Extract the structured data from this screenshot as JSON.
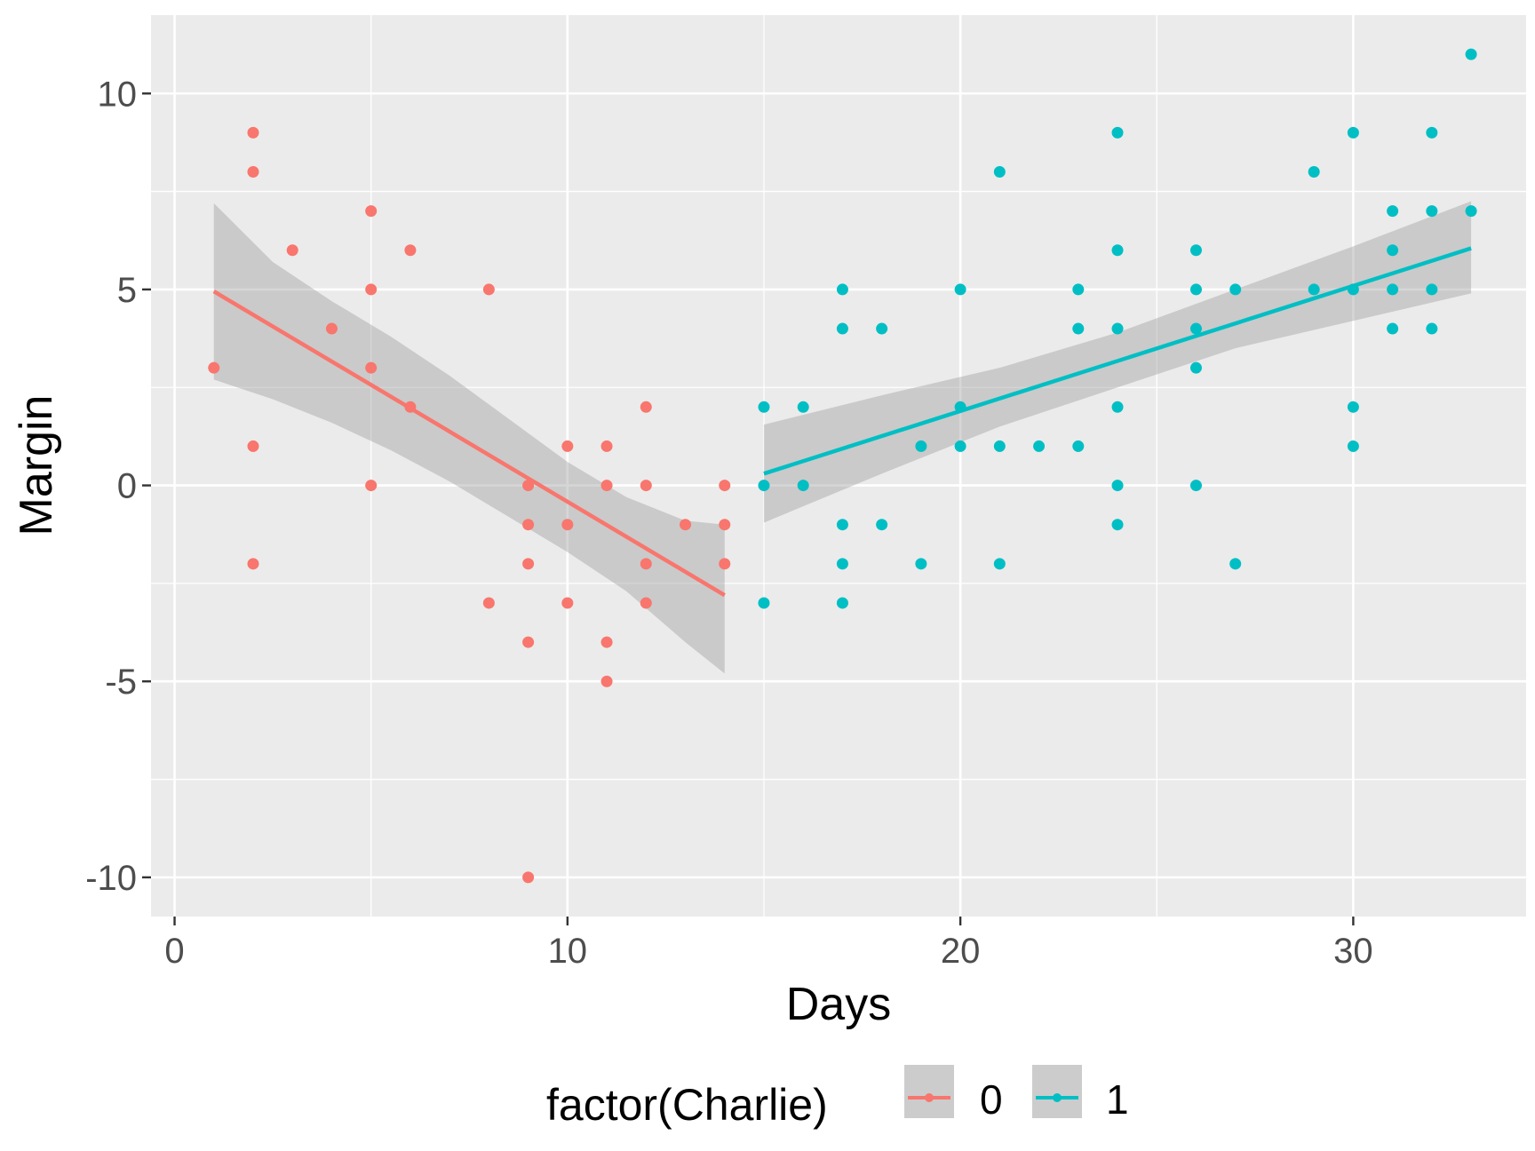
{
  "chart_data": {
    "type": "scatter",
    "title": "",
    "xlabel": "Days",
    "ylabel": "Margin",
    "xlim": [
      -0.6,
      34.4
    ],
    "ylim": [
      -11,
      12
    ],
    "x_ticks": [
      0,
      10,
      20,
      30
    ],
    "x_tick_labels": [
      "0",
      "10",
      "20",
      "30"
    ],
    "y_ticks": [
      -10,
      -5,
      0,
      5,
      10
    ],
    "y_tick_labels": [
      "-10",
      "-5",
      "0",
      "5",
      "10"
    ],
    "grid": true,
    "legend": {
      "title": "factor(Charlie)",
      "position": "bottom",
      "entries": [
        "0",
        "1"
      ]
    },
    "series": [
      {
        "name": "0",
        "color": "#F8766D",
        "points": [
          [
            1,
            3
          ],
          [
            2,
            9
          ],
          [
            2,
            8
          ],
          [
            2,
            1
          ],
          [
            2,
            -2
          ],
          [
            3,
            6
          ],
          [
            4,
            4
          ],
          [
            5,
            7
          ],
          [
            5,
            5
          ],
          [
            5,
            3
          ],
          [
            5,
            0
          ],
          [
            6,
            6
          ],
          [
            6,
            2
          ],
          [
            8,
            5
          ],
          [
            8,
            -3
          ],
          [
            9,
            0
          ],
          [
            9,
            -1
          ],
          [
            9,
            -2
          ],
          [
            9,
            -4
          ],
          [
            9,
            -10
          ],
          [
            10,
            1
          ],
          [
            10,
            -1
          ],
          [
            10,
            -3
          ],
          [
            11,
            1
          ],
          [
            11,
            0
          ],
          [
            11,
            -4
          ],
          [
            11,
            -5
          ],
          [
            12,
            2
          ],
          [
            12,
            0
          ],
          [
            12,
            -2
          ],
          [
            12,
            -3
          ],
          [
            13,
            -1
          ],
          [
            14,
            0
          ],
          [
            14,
            -1
          ],
          [
            14,
            -2
          ]
        ],
        "fit": {
          "x0": 1,
          "y0": 4.95,
          "x1": 14,
          "y1": -2.8
        },
        "band": {
          "x": [
            1,
            2.5,
            4,
            5.5,
            7,
            8.5,
            10,
            11.5,
            13,
            14
          ],
          "upper": [
            7.2,
            5.7,
            4.7,
            3.8,
            2.8,
            1.7,
            0.6,
            -0.3,
            -0.9,
            -1.0
          ],
          "lower": [
            2.7,
            2.2,
            1.6,
            0.9,
            0.1,
            -0.8,
            -1.7,
            -2.7,
            -4.0,
            -4.8
          ]
        }
      },
      {
        "name": "1",
        "color": "#00BFC4",
        "points": [
          [
            15,
            2
          ],
          [
            15,
            0
          ],
          [
            15,
            -3
          ],
          [
            16,
            2
          ],
          [
            16,
            0
          ],
          [
            17,
            5
          ],
          [
            17,
            4
          ],
          [
            17,
            -1
          ],
          [
            17,
            -2
          ],
          [
            17,
            -3
          ],
          [
            18,
            4
          ],
          [
            18,
            -1
          ],
          [
            19,
            1
          ],
          [
            19,
            -2
          ],
          [
            20,
            5
          ],
          [
            20,
            2
          ],
          [
            20,
            1
          ],
          [
            21,
            8
          ],
          [
            21,
            1
          ],
          [
            21,
            -2
          ],
          [
            22,
            1
          ],
          [
            23,
            5
          ],
          [
            23,
            4
          ],
          [
            23,
            1
          ],
          [
            24,
            9
          ],
          [
            24,
            6
          ],
          [
            24,
            4
          ],
          [
            24,
            2
          ],
          [
            24,
            0
          ],
          [
            24,
            -1
          ],
          [
            26,
            6
          ],
          [
            26,
            5
          ],
          [
            26,
            4
          ],
          [
            26,
            3
          ],
          [
            26,
            0
          ],
          [
            27,
            5
          ],
          [
            27,
            -2
          ],
          [
            29,
            8
          ],
          [
            29,
            5
          ],
          [
            30,
            9
          ],
          [
            30,
            5
          ],
          [
            30,
            2
          ],
          [
            30,
            1
          ],
          [
            31,
            7
          ],
          [
            31,
            6
          ],
          [
            31,
            5
          ],
          [
            31,
            4
          ],
          [
            32,
            9
          ],
          [
            32,
            7
          ],
          [
            32,
            5
          ],
          [
            32,
            4
          ],
          [
            33,
            11
          ],
          [
            33,
            7
          ]
        ],
        "fit": {
          "x0": 15,
          "y0": 0.3,
          "x1": 33,
          "y1": 6.05
        },
        "band": {
          "x": [
            15,
            18,
            21,
            24,
            27,
            30,
            33
          ],
          "upper": [
            1.55,
            2.3,
            3.0,
            3.9,
            5.0,
            6.1,
            7.25
          ],
          "lower": [
            -0.95,
            0.3,
            1.5,
            2.5,
            3.5,
            4.2,
            4.9
          ]
        }
      }
    ]
  }
}
